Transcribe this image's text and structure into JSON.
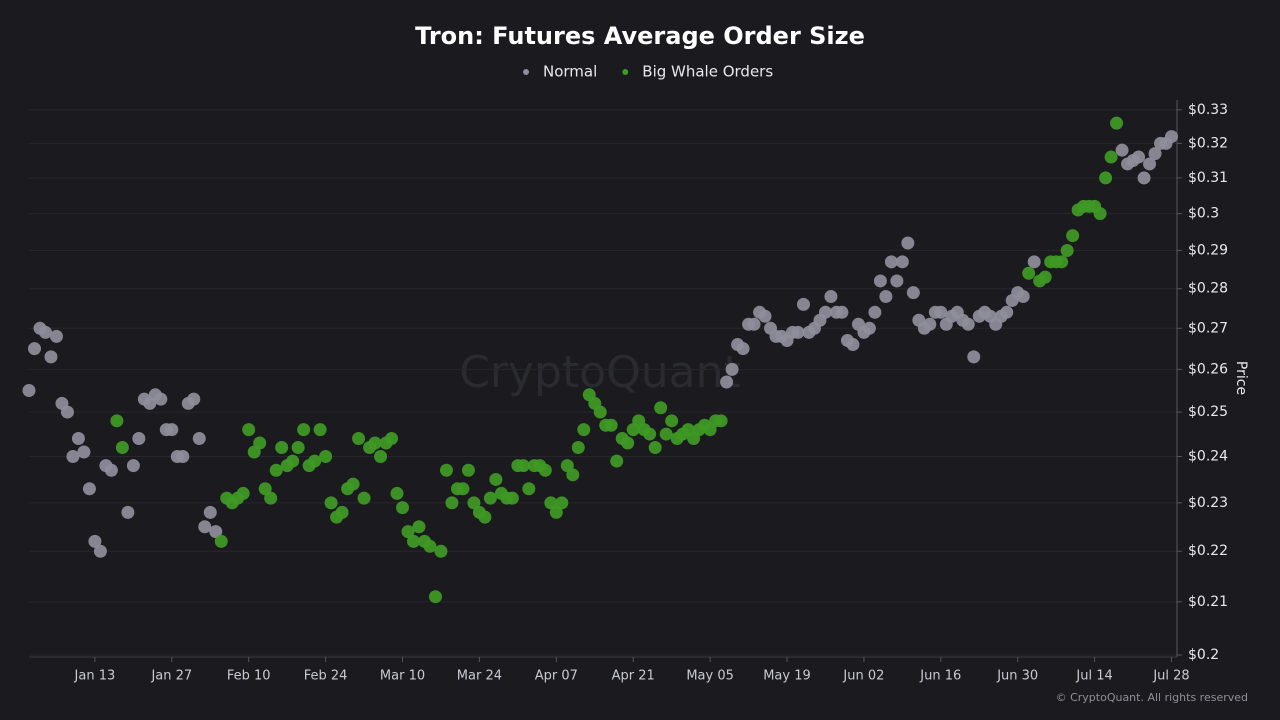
{
  "chart_data": {
    "type": "scatter",
    "title": "Tron: Futures Average Order Size",
    "y_label": "Price",
    "watermark": "CryptoQuant",
    "footer": "© CryptoQuant. All rights reserved",
    "log_y": true,
    "grid": true,
    "legend": "top",
    "xlim": [
      "Jan 01",
      "Jul 29"
    ],
    "xticks": [
      "Jan 13",
      "Jan 27",
      "Feb 10",
      "Feb 24",
      "Mar 10",
      "Mar 24",
      "Apr 07",
      "Apr 21",
      "May 05",
      "May 19",
      "Jun 02",
      "Jun 16",
      "Jun 30",
      "Jul 14",
      "Jul 28"
    ],
    "ylim": [
      0.2,
      0.333
    ],
    "yticks": [
      {
        "value": 0.2,
        "label": "$0.2"
      },
      {
        "value": 0.21,
        "label": "$0.21"
      },
      {
        "value": 0.22,
        "label": "$0.22"
      },
      {
        "value": 0.23,
        "label": "$0.23"
      },
      {
        "value": 0.24,
        "label": "$0.24"
      },
      {
        "value": 0.25,
        "label": "$0.25"
      },
      {
        "value": 0.26,
        "label": "$0.26"
      },
      {
        "value": 0.27,
        "label": "$0.27"
      },
      {
        "value": 0.28,
        "label": "$0.28"
      },
      {
        "value": 0.29,
        "label": "$0.29"
      },
      {
        "value": 0.3,
        "label": "$0.3"
      },
      {
        "value": 0.31,
        "label": "$0.31"
      },
      {
        "value": 0.32,
        "label": "$0.32"
      },
      {
        "value": 0.33,
        "label": "$0.33"
      }
    ],
    "series": [
      {
        "name": "Normal",
        "color": "#8f8e9b",
        "x": [
          "Jan 01",
          "Jan 02",
          "Jan 03",
          "Jan 04",
          "Jan 05",
          "Jan 06",
          "Jan 07",
          "Jan 08",
          "Jan 09",
          "Jan 10",
          "Jan 11",
          "Jan 12",
          "Jan 13",
          "Jan 14",
          "Jan 15",
          "Jan 16",
          "Jan 19",
          "Jan 20",
          "Jan 21",
          "Jan 22",
          "Jan 23",
          "Jan 24",
          "Jan 25",
          "Jan 26",
          "Jan 27",
          "Jan 28",
          "Jan 29",
          "Jan 30",
          "Jan 31",
          "Feb 01",
          "Feb 02",
          "Feb 03",
          "Feb 04",
          "May 08",
          "May 09",
          "May 10",
          "May 11",
          "May 12",
          "May 13",
          "May 14",
          "May 15",
          "May 16",
          "May 17",
          "May 18",
          "May 19",
          "May 20",
          "May 21",
          "May 22",
          "May 23",
          "May 24",
          "May 25",
          "May 26",
          "May 27",
          "May 28",
          "May 29",
          "May 30",
          "May 31",
          "Jun 01",
          "Jun 02",
          "Jun 03",
          "Jun 04",
          "Jun 05",
          "Jun 06",
          "Jun 07",
          "Jun 08",
          "Jun 09",
          "Jun 10",
          "Jun 11",
          "Jun 12",
          "Jun 13",
          "Jun 14",
          "Jun 15",
          "Jun 16",
          "Jun 17",
          "Jun 18",
          "Jun 19",
          "Jun 20",
          "Jun 21",
          "Jun 22",
          "Jun 23",
          "Jun 24",
          "Jun 25",
          "Jun 26",
          "Jun 27",
          "Jun 28",
          "Jun 29",
          "Jun 30",
          "Jul 01",
          "Jul 03",
          "Jul 19",
          "Jul 20",
          "Jul 21",
          "Jul 22",
          "Jul 23",
          "Jul 24",
          "Jul 25",
          "Jul 26",
          "Jul 27",
          "Jul 28"
        ],
        "values": [
          0.255,
          0.265,
          0.27,
          0.269,
          0.263,
          0.268,
          0.252,
          0.25,
          0.24,
          0.244,
          0.241,
          0.233,
          0.222,
          0.22,
          0.238,
          0.237,
          0.228,
          0.238,
          0.244,
          0.253,
          0.252,
          0.254,
          0.253,
          0.246,
          0.246,
          0.24,
          0.24,
          0.252,
          0.253,
          0.244,
          0.225,
          0.228,
          0.224,
          0.257,
          0.26,
          0.266,
          0.265,
          0.271,
          0.271,
          0.274,
          0.273,
          0.27,
          0.268,
          0.268,
          0.267,
          0.269,
          0.269,
          0.276,
          0.269,
          0.27,
          0.272,
          0.274,
          0.278,
          0.274,
          0.274,
          0.267,
          0.266,
          0.271,
          0.269,
          0.27,
          0.274,
          0.282,
          0.278,
          0.287,
          0.282,
          0.287,
          0.292,
          0.279,
          0.272,
          0.27,
          0.271,
          0.274,
          0.274,
          0.271,
          0.273,
          0.274,
          0.272,
          0.271,
          0.263,
          0.273,
          0.274,
          0.273,
          0.271,
          0.273,
          0.274,
          0.277,
          0.279,
          0.278,
          0.287,
          0.318,
          0.314,
          0.315,
          0.316,
          0.31,
          0.314,
          0.317,
          0.32,
          0.32,
          0.322
        ]
      },
      {
        "name": "Big Whale Orders",
        "color": "#3f9a25",
        "x": [
          "Jan 17",
          "Jan 18",
          "Feb 05",
          "Feb 06",
          "Feb 07",
          "Feb 08",
          "Feb 09",
          "Feb 10",
          "Feb 11",
          "Feb 12",
          "Feb 13",
          "Feb 14",
          "Feb 15",
          "Feb 16",
          "Feb 17",
          "Feb 18",
          "Feb 19",
          "Feb 20",
          "Feb 21",
          "Feb 22",
          "Feb 23",
          "Feb 24",
          "Feb 25",
          "Feb 26",
          "Feb 27",
          "Feb 28",
          "Mar 01",
          "Mar 02",
          "Mar 03",
          "Mar 04",
          "Mar 05",
          "Mar 06",
          "Mar 07",
          "Mar 08",
          "Mar 09",
          "Mar 10",
          "Mar 11",
          "Mar 12",
          "Mar 13",
          "Mar 14",
          "Mar 15",
          "Mar 16",
          "Mar 17",
          "Mar 18",
          "Mar 19",
          "Mar 20",
          "Mar 21",
          "Mar 22",
          "Mar 23",
          "Mar 24",
          "Mar 25",
          "Mar 26",
          "Mar 27",
          "Mar 28",
          "Mar 29",
          "Mar 30",
          "Mar 31",
          "Apr 01",
          "Apr 02",
          "Apr 03",
          "Apr 04",
          "Apr 05",
          "Apr 06",
          "Apr 07",
          "Apr 08",
          "Apr 09",
          "Apr 10",
          "Apr 11",
          "Apr 12",
          "Apr 13",
          "Apr 14",
          "Apr 15",
          "Apr 16",
          "Apr 17",
          "Apr 18",
          "Apr 19",
          "Apr 20",
          "Apr 21",
          "Apr 22",
          "Apr 23",
          "Apr 24",
          "Apr 25",
          "Apr 26",
          "Apr 27",
          "Apr 28",
          "Apr 29",
          "Apr 30",
          "May 01",
          "May 02",
          "May 03",
          "May 04",
          "May 05",
          "May 06",
          "May 07",
          "Jul 02",
          "Jul 04",
          "Jul 05",
          "Jul 06",
          "Jul 07",
          "Jul 08",
          "Jul 09",
          "Jul 10",
          "Jul 11",
          "Jul 12",
          "Jul 13",
          "Jul 14",
          "Jul 15",
          "Jul 16",
          "Jul 17",
          "Jul 18"
        ],
        "values": [
          0.248,
          0.242,
          0.222,
          0.231,
          0.23,
          0.231,
          0.232,
          0.246,
          0.241,
          0.243,
          0.233,
          0.231,
          0.237,
          0.242,
          0.238,
          0.239,
          0.242,
          0.246,
          0.238,
          0.239,
          0.246,
          0.24,
          0.23,
          0.227,
          0.228,
          0.233,
          0.234,
          0.244,
          0.231,
          0.242,
          0.243,
          0.24,
          0.243,
          0.244,
          0.232,
          0.229,
          0.224,
          0.222,
          0.225,
          0.222,
          0.221,
          0.211,
          0.22,
          0.237,
          0.23,
          0.233,
          0.233,
          0.237,
          0.23,
          0.228,
          0.227,
          0.231,
          0.235,
          0.232,
          0.231,
          0.231,
          0.238,
          0.238,
          0.233,
          0.238,
          0.238,
          0.237,
          0.23,
          0.228,
          0.23,
          0.238,
          0.236,
          0.242,
          0.246,
          0.254,
          0.252,
          0.25,
          0.247,
          0.247,
          0.239,
          0.244,
          0.243,
          0.246,
          0.248,
          0.246,
          0.245,
          0.242,
          0.251,
          0.245,
          0.248,
          0.244,
          0.245,
          0.246,
          0.244,
          0.246,
          0.247,
          0.246,
          0.248,
          0.248,
          0.284,
          0.282,
          0.283,
          0.287,
          0.287,
          0.287,
          0.29,
          0.294,
          0.301,
          0.302,
          0.302,
          0.302,
          0.3,
          0.31,
          0.316,
          0.326
        ]
      }
    ]
  }
}
